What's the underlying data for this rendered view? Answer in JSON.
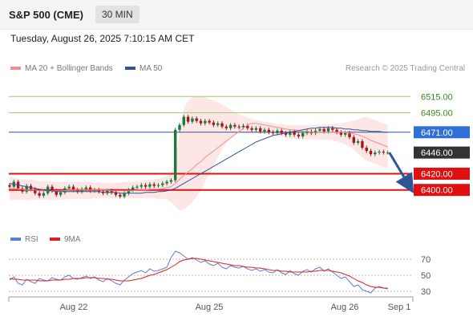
{
  "header": {
    "title": "S&P 500 (CME)",
    "timeframe": "30 MIN"
  },
  "datetime": "Tuesday, August 26, 2025 7:10:15 AM CET",
  "credit": "Research © 2025 Trading Central",
  "legend_main": [
    {
      "label": "MA 20 + Bollinger Bands",
      "color": "#f28e8e"
    },
    {
      "label": "MA 50",
      "color": "#2f5596"
    }
  ],
  "legend_rsi": [
    {
      "label": "RSI",
      "color": "#5b7fdc"
    },
    {
      "label": "9MA",
      "color": "#e02020"
    }
  ],
  "colors": {
    "up": "#1a7a3a",
    "down": "#a01818",
    "resistance": "#9bcf6a",
    "pivot": "#2f5596",
    "support": "#e01010",
    "bb_fill": "#fde3e3"
  },
  "chart_data": [
    {
      "type": "candlestick",
      "ylim": [
        6375,
        6535
      ],
      "x_ticks": [
        "Aug 22",
        "Aug 25",
        "Aug 26",
        "Sep 1"
      ],
      "levels": [
        {
          "value": 6515.0,
          "label": "6515.00",
          "kind": "resistance"
        },
        {
          "value": 6495.0,
          "label": "6495.00",
          "kind": "resistance"
        },
        {
          "value": 6471.0,
          "label": "6471.00",
          "kind": "pivot"
        },
        {
          "value": 6446.0,
          "label": "6446.00",
          "kind": "last"
        },
        {
          "value": 6420.0,
          "label": "6420.00",
          "kind": "support"
        },
        {
          "value": 6400.0,
          "label": "6400.00",
          "kind": "support"
        }
      ],
      "close": [
        6404,
        6410,
        6402,
        6398,
        6405,
        6401,
        6396,
        6393,
        6396,
        6404,
        6399,
        6394,
        6397,
        6402,
        6404,
        6400,
        6398,
        6401,
        6403,
        6399,
        6400,
        6398,
        6396,
        6399,
        6397,
        6394,
        6392,
        6396,
        6400,
        6403,
        6404,
        6406,
        6404,
        6407,
        6405,
        6406,
        6408,
        6410,
        6412,
        6474,
        6480,
        6490,
        6484,
        6488,
        6485,
        6482,
        6485,
        6483,
        6480,
        6482,
        6478,
        6476,
        6480,
        6478,
        6477,
        6479,
        6476,
        6474,
        6476,
        6472,
        6474,
        6471,
        6470,
        6473,
        6470,
        6468,
        6472,
        6468,
        6466,
        6470,
        6472,
        6470,
        6473,
        6475,
        6472,
        6476,
        6474,
        6471,
        6468,
        6470,
        6465,
        6458,
        6460,
        6452,
        6448,
        6444,
        6446,
        6447,
        6446,
        6446
      ],
      "ma20": [
        6402,
        6402,
        6401,
        6401,
        6400,
        6400,
        6400,
        6399,
        6399,
        6399,
        6399,
        6399,
        6399,
        6399,
        6400,
        6400,
        6400,
        6400,
        6400,
        6400,
        6400,
        6400,
        6400,
        6400,
        6399,
        6399,
        6399,
        6399,
        6399,
        6399,
        6400,
        6400,
        6400,
        6401,
        6401,
        6401,
        6402,
        6403,
        6404,
        6408,
        6413,
        6418,
        6422,
        6426,
        6431,
        6435,
        6440,
        6444,
        6448,
        6452,
        6456,
        6460,
        6464,
        6468,
        6472,
        6476,
        6480,
        6482,
        6482,
        6481,
        6480,
        6479,
        6478,
        6477,
        6476,
        6475,
        6474,
        6474,
        6473,
        6472,
        6472,
        6471,
        6471,
        6471,
        6471,
        6471,
        6471,
        6471,
        6471,
        6471,
        6470,
        6469,
        6468,
        6466,
        6464,
        6461,
        6459,
        6457,
        6455,
        6453
      ],
      "bb_upper": [
        6416,
        6415,
        6414,
        6413,
        6413,
        6412,
        6412,
        6411,
        6411,
        6411,
        6410,
        6410,
        6410,
        6410,
        6410,
        6410,
        6410,
        6410,
        6410,
        6410,
        6409,
        6409,
        6409,
        6409,
        6409,
        6409,
        6409,
        6410,
        6410,
        6410,
        6411,
        6411,
        6412,
        6412,
        6413,
        6414,
        6415,
        6417,
        6420,
        6440,
        6470,
        6500,
        6510,
        6514,
        6515,
        6515,
        6514,
        6512,
        6510,
        6508,
        6505,
        6502,
        6499,
        6496,
        6493,
        6491,
        6489,
        6488,
        6486,
        6485,
        6484,
        6483,
        6482,
        6481,
        6481,
        6480,
        6480,
        6480,
        6480,
        6480,
        6480,
        6480,
        6480,
        6480,
        6481,
        6481,
        6481,
        6482,
        6482,
        6483,
        6484,
        6485,
        6487,
        6489,
        6490,
        6488,
        6486,
        6484,
        6482,
        6480
      ],
      "bb_lower": [
        6388,
        6388,
        6388,
        6388,
        6388,
        6388,
        6388,
        6388,
        6388,
        6388,
        6388,
        6388,
        6388,
        6388,
        6389,
        6389,
        6389,
        6389,
        6389,
        6389,
        6390,
        6390,
        6390,
        6390,
        6390,
        6390,
        6390,
        6390,
        6390,
        6390,
        6390,
        6390,
        6390,
        6390,
        6390,
        6389,
        6389,
        6388,
        6385,
        6380,
        6375,
        6376,
        6380,
        6385,
        6392,
        6400,
        6410,
        6420,
        6430,
        6440,
        6450,
        6458,
        6464,
        6468,
        6470,
        6470,
        6470,
        6470,
        6470,
        6469,
        6469,
        6468,
        6467,
        6466,
        6465,
        6464,
        6463,
        6463,
        6462,
        6462,
        6462,
        6462,
        6462,
        6462,
        6462,
        6462,
        6461,
        6460,
        6458,
        6456,
        6453,
        6450,
        6445,
        6440,
        6436,
        6434,
        6432,
        6430,
        6428,
        6426
      ],
      "ma50": [
        6408,
        6407,
        6406,
        6405,
        6404,
        6403,
        6402,
        6401,
        6400,
        6399,
        6399,
        6398,
        6398,
        6398,
        6398,
        6398,
        6398,
        6398,
        6398,
        6398,
        6398,
        6398,
        6397,
        6397,
        6397,
        6397,
        6396,
        6396,
        6396,
        6396,
        6396,
        6396,
        6397,
        6397,
        6397,
        6398,
        6398,
        6399,
        6400,
        6402,
        6405,
        6408,
        6411,
        6414,
        6417,
        6420,
        6423,
        6426,
        6429,
        6432,
        6435,
        6438,
        6441,
        6444,
        6447,
        6450,
        6453,
        6456,
        6459,
        6461,
        6463,
        6465,
        6467,
        6468,
        6469,
        6470,
        6471,
        6472,
        6473,
        6474,
        6475,
        6476,
        6476,
        6477,
        6477,
        6477,
        6477,
        6476,
        6476,
        6475,
        6475,
        6474,
        6474,
        6473,
        6473,
        6472,
        6472,
        6472,
        6471,
        6471
      ],
      "forecast": {
        "from": 6446.0,
        "to": 6400.0
      }
    },
    {
      "type": "line",
      "ylim": [
        20,
        80
      ],
      "y_ticks": [
        70,
        50,
        30
      ],
      "series": [
        {
          "name": "RSI",
          "color": "#5b7fdc",
          "values": [
            44,
            48,
            40,
            38,
            45,
            42,
            40,
            46,
            44,
            43,
            47,
            45,
            44,
            48,
            50,
            46,
            45,
            47,
            49,
            46,
            48,
            44,
            42,
            46,
            43,
            40,
            38,
            44,
            48,
            52,
            54,
            56,
            53,
            58,
            55,
            56,
            58,
            60,
            72,
            80,
            78,
            74,
            70,
            72,
            69,
            66,
            68,
            64,
            62,
            65,
            60,
            58,
            62,
            60,
            59,
            61,
            58,
            56,
            58,
            55,
            57,
            54,
            53,
            57,
            53,
            51,
            56,
            52,
            50,
            55,
            57,
            54,
            58,
            60,
            55,
            58,
            54,
            50,
            46,
            48,
            42,
            36,
            38,
            32,
            30,
            28,
            34,
            36,
            34,
            33
          ]
        },
        {
          "name": "9MA",
          "color": "#e02020",
          "values": [
            46,
            45,
            45,
            44,
            44,
            44,
            44,
            43,
            43,
            43,
            44,
            44,
            44,
            45,
            45,
            46,
            46,
            46,
            47,
            47,
            47,
            46,
            46,
            45,
            45,
            44,
            43,
            43,
            43,
            44,
            45,
            46,
            48,
            50,
            51,
            53,
            55,
            57,
            60,
            63,
            67,
            69,
            70,
            71,
            71,
            70,
            69,
            68,
            67,
            66,
            65,
            64,
            63,
            62,
            62,
            61,
            60,
            60,
            59,
            59,
            58,
            57,
            56,
            56,
            55,
            55,
            54,
            54,
            54,
            54,
            54,
            55,
            55,
            56,
            56,
            56,
            55,
            54,
            53,
            51,
            49,
            46,
            43,
            41,
            38,
            36,
            35,
            35,
            34,
            34
          ]
        }
      ]
    }
  ]
}
